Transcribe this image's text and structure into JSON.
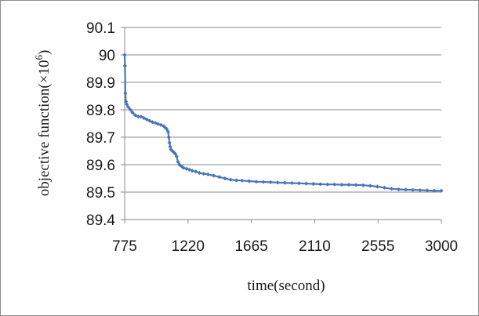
{
  "chart_data": {
    "type": "line",
    "xlabel": "time(second)",
    "ylabel": "objective function(×10",
    "ylabel_exponent": "6",
    "ylabel_close": ")",
    "xlim": [
      775,
      3000
    ],
    "ylim": [
      89.4,
      90.1
    ],
    "x_ticks": [
      "775",
      "1220",
      "1665",
      "2110",
      "2555",
      "3000"
    ],
    "x_tick_values": [
      775,
      1220,
      1665,
      2110,
      2555,
      3000
    ],
    "y_ticks": [
      "89.4",
      "89.5",
      "89.6",
      "89.7",
      "89.8",
      "89.9",
      "90",
      "90.1"
    ],
    "y_tick_values": [
      89.4,
      89.5,
      89.6,
      89.7,
      89.8,
      89.9,
      90.0,
      90.1
    ],
    "grid": "horizontal",
    "legend": "none",
    "series": [
      {
        "color": "#4a76b8",
        "marker": "diamond",
        "x": [
          775,
          777,
          780,
          784,
          790,
          800,
          815,
          830,
          850,
          870,
          890,
          910,
          930,
          950,
          970,
          990,
          1010,
          1030,
          1050,
          1060,
          1070,
          1080,
          1085,
          1090,
          1095,
          1100,
          1110,
          1120,
          1130,
          1140,
          1150,
          1160,
          1175,
          1190,
          1210,
          1230,
          1250,
          1275,
          1300,
          1330,
          1360,
          1400,
          1440,
          1480,
          1520,
          1560,
          1600,
          1650,
          1700,
          1750,
          1800,
          1850,
          1900,
          1950,
          2000,
          2050,
          2100,
          2150,
          2200,
          2250,
          2300,
          2350,
          2400,
          2450,
          2500,
          2550,
          2600,
          2650,
          2700,
          2750,
          2800,
          2850,
          2900,
          2950,
          3000
        ],
        "y": [
          90.0,
          89.96,
          89.86,
          89.83,
          89.82,
          89.81,
          89.8,
          89.79,
          89.78,
          89.775,
          89.775,
          89.77,
          89.765,
          89.76,
          89.755,
          89.752,
          89.748,
          89.745,
          89.74,
          89.735,
          89.73,
          89.72,
          89.7,
          89.68,
          89.665,
          89.655,
          89.65,
          89.645,
          89.64,
          89.63,
          89.61,
          89.6,
          89.594,
          89.588,
          89.585,
          89.582,
          89.578,
          89.575,
          89.57,
          89.567,
          89.565,
          89.56,
          89.555,
          89.55,
          89.545,
          89.543,
          89.542,
          89.54,
          89.538,
          89.537,
          89.536,
          89.535,
          89.534,
          89.533,
          89.532,
          89.531,
          89.53,
          89.529,
          89.528,
          89.528,
          89.527,
          89.527,
          89.526,
          89.525,
          89.523,
          89.52,
          89.516,
          89.512,
          89.51,
          89.509,
          89.508,
          89.507,
          89.506,
          89.505,
          89.505
        ]
      }
    ]
  }
}
